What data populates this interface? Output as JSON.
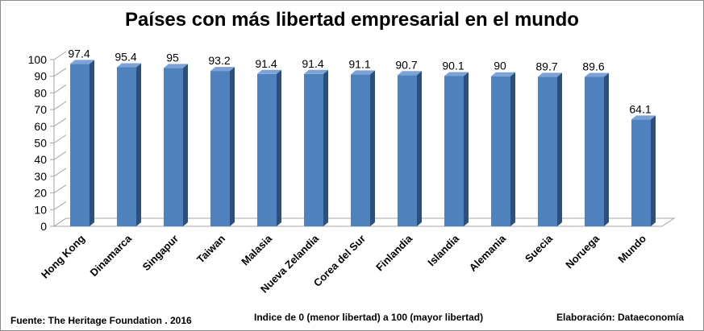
{
  "chart_data": {
    "type": "bar",
    "title": "Países con más libertad empresarial en el mundo",
    "categories": [
      "Hong Kong",
      "Dinamarca",
      "Singapur",
      "Taiwan",
      "Malasia",
      "Nueva Zelandia",
      "Corea del Sur",
      "Finlandia",
      "Islandia",
      "Alemania",
      "Suecia",
      "Noruega",
      "Mundo"
    ],
    "values": [
      97.4,
      95.4,
      95,
      93.2,
      91.4,
      91.4,
      91.1,
      90.7,
      90.1,
      90,
      89.7,
      89.6,
      64.1
    ],
    "value_labels": [
      "97.4",
      "95.4",
      "95",
      "93.2",
      "91.4",
      "91.4",
      "91.1",
      "90.7",
      "90.1",
      "90",
      "89.7",
      "89.6",
      "64.1"
    ],
    "ylim": [
      0,
      100
    ],
    "yticks": [
      0,
      10,
      20,
      30,
      40,
      50,
      60,
      70,
      80,
      90,
      100
    ],
    "grid": false,
    "legend": "none",
    "style": "3d-column",
    "colors": {
      "front": "#4f81bd",
      "side": "#2c4f7c",
      "top": "#7da3d6",
      "axis": "#a6a6a6"
    }
  },
  "footer": {
    "source": "Fuente: The Heritage Foundation . 2016",
    "note": "Indice de 0 (menor libertad) a 100  (mayor libertad)",
    "credit": "Elaboración: Dataeconomía"
  }
}
